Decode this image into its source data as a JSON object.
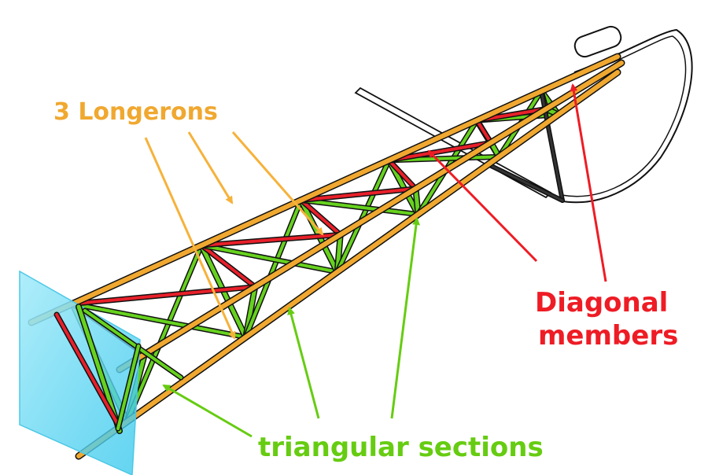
{
  "labels": {
    "longerons": "3 Longerons",
    "diagonal_line1": "Diagonal",
    "diagonal_line2": "members",
    "sections": "triangular sections"
  },
  "colors": {
    "longeron": "#f0a830",
    "diagonal": "#e8202a",
    "section": "#66d21e",
    "longeron_label": "#f0a830",
    "diagonal_label": "#ee1c25",
    "section_label": "#66cc11",
    "panel": "#5cd6f0",
    "outline": "#111111"
  }
}
